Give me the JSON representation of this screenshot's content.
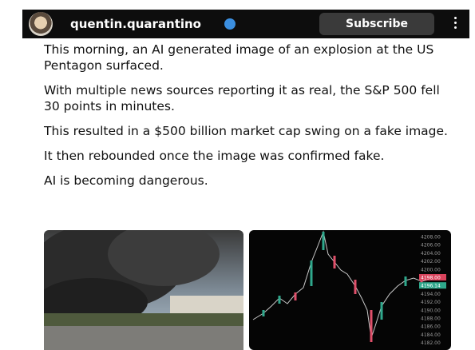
{
  "header": {
    "username": "quentin.quarantino",
    "subscribe": "Subscribe"
  },
  "post": {
    "paragraphs": [
      "This morning, an AI generated image of an explosion at the US Pentagon surfaced.",
      "With multiple news sources reporting it as real, the S&P 500 fell 30 points in minutes.",
      "This resulted in a $500 billion market cap swing on a fake image.",
      "It then rebounded once the image was confirmed fake.",
      "AI is becoming dangerous."
    ]
  },
  "chart_image": {
    "price_labels": [
      "4208.00",
      "4206.00",
      "4204.00",
      "4202.00",
      "4200.00",
      "4198.00",
      "4196.14",
      "4194.00",
      "4192.00",
      "4190.00",
      "4188.00",
      "4186.00",
      "4184.00",
      "4182.00"
    ]
  }
}
